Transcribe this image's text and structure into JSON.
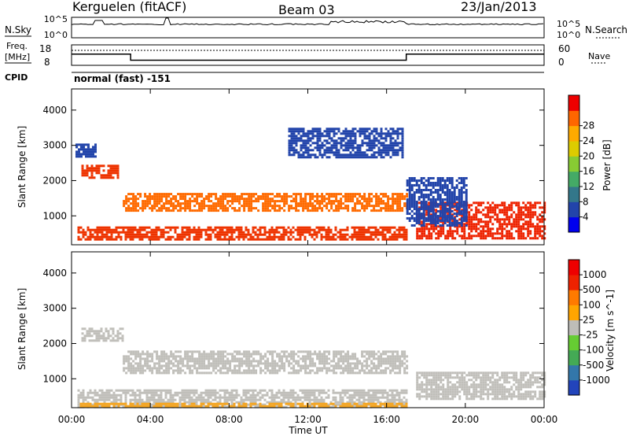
{
  "header": {
    "station": "Kerguelen (fitACF)",
    "beam": "Beam 03",
    "date": "23/Jan/2013"
  },
  "nsky_panel": {
    "left_label": "N.Sky",
    "right_label": "N.Search",
    "left_ticks": [
      "10^5",
      "10^0"
    ],
    "right_ticks": [
      "10^5",
      "10^0"
    ]
  },
  "freq_panel": {
    "left_label_1": "Freq.",
    "left_label_2": "[MHz]",
    "right_label": "Nave",
    "left_ticks": [
      "18",
      "8"
    ],
    "right_ticks": [
      "60",
      "0"
    ]
  },
  "cpid": {
    "label": "CPID",
    "value": "normal (fast) -151"
  },
  "time_axis": {
    "title": "Time UT",
    "ticks": [
      "00:00",
      "04:00",
      "08:00",
      "12:00",
      "16:00",
      "20:00",
      "00:00"
    ]
  },
  "chart_data": [
    {
      "type": "heatmap",
      "name": "power",
      "ylabel": "Slant Range [km]",
      "x_range_hours": [
        0,
        24
      ],
      "ylim": [
        180,
        4600
      ],
      "y_ticks": [
        1000,
        2000,
        3000,
        4000
      ],
      "colorbar": {
        "label": "Power [dB]",
        "ticks": [
          "4",
          "8",
          "12",
          "16",
          "20",
          "24",
          "28"
        ],
        "colors": [
          "#0000ee",
          "#2244aa",
          "#33778a",
          "#44aa66",
          "#88cc33",
          "#ddcc00",
          "#ffaa00",
          "#ff6600",
          "#ee0000"
        ]
      },
      "bands": [
        {
          "t": [
            0.3,
            17.0
          ],
          "r": [
            350,
            700
          ],
          "color": "#ee3300"
        },
        {
          "t": [
            2.6,
            17.0
          ],
          "r": [
            1180,
            1650
          ],
          "color": "#ff6a00"
        },
        {
          "t": [
            0.5,
            2.4
          ],
          "r": [
            2050,
            2450
          ],
          "color": "#ee3300"
        },
        {
          "t": [
            17.5,
            24.0
          ],
          "r": [
            380,
            1400
          ],
          "color": "#ee2200"
        },
        {
          "t": [
            0.2,
            1.2
          ],
          "r": [
            2700,
            3050
          ],
          "color": "#2244aa"
        },
        {
          "t": [
            11.0,
            16.8
          ],
          "r": [
            2650,
            3500
          ],
          "color": "#2244aa"
        },
        {
          "t": [
            17.0,
            20.0
          ],
          "r": [
            700,
            2100
          ],
          "color": "#2244aa"
        }
      ]
    },
    {
      "type": "heatmap",
      "name": "velocity",
      "ylabel": "Slant Range [km]",
      "x_range_hours": [
        0,
        24
      ],
      "ylim": [
        180,
        4600
      ],
      "y_ticks": [
        1000,
        2000,
        3000,
        4000
      ],
      "colorbar": {
        "label": "Velocity [m s^-1]",
        "ticks": [
          "1000",
          "500",
          "100",
          "25",
          "-25",
          "-100",
          "-500",
          "-1000"
        ],
        "colors": [
          "#2244bb",
          "#3377aa",
          "#44aa55",
          "#66cc33",
          "#bebdb8",
          "#ffa500",
          "#ff7a00",
          "#ee2200",
          "#ee0000"
        ]
      },
      "bands": [
        {
          "t": [
            0.3,
            17.0
          ],
          "r": [
            180,
            700
          ],
          "color": "#c0bfba"
        },
        {
          "t": [
            2.6,
            17.0
          ],
          "r": [
            1180,
            1800
          ],
          "color": "#c0bfba"
        },
        {
          "t": [
            0.5,
            2.6
          ],
          "r": [
            2050,
            2450
          ],
          "color": "#c0bfba"
        },
        {
          "t": [
            17.5,
            24.0
          ],
          "r": [
            400,
            1200
          ],
          "color": "#c0bfba"
        },
        {
          "t": [
            0.3,
            17.0
          ],
          "r": [
            190,
            320
          ],
          "color": "#f5a623"
        }
      ]
    }
  ]
}
